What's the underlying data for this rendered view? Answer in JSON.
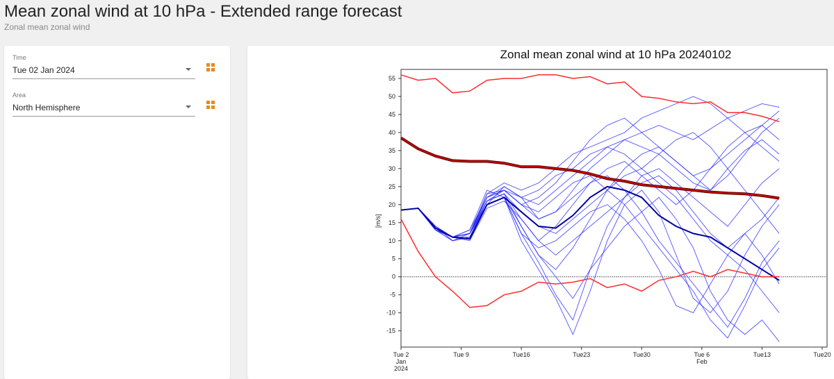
{
  "header": {
    "title": "Mean zonal wind at 10 hPa - Extended range forecast",
    "subtitle": "Zonal mean zonal wind"
  },
  "controls": [
    {
      "label": "Time",
      "value": "Tue 02 Jan 2024",
      "icon": "grid-icon"
    },
    {
      "label": "Area",
      "value": "North Hemisphere",
      "icon": "grid-icon"
    }
  ],
  "colors": {
    "accent": "#e8891c",
    "extremes": "#ff2a2a",
    "mean": "#c00000",
    "control": "#0000a0",
    "members": "#2a2aff"
  },
  "chart_data": {
    "type": "line",
    "title": "Zonal mean zonal wind at 10 hPa 20240102",
    "ylabel": "[m/s]",
    "ylim": [
      -19.5,
      57.5
    ],
    "xlim": [
      "2024-01-02",
      "2024-02-20"
    ],
    "yticks": [
      -15,
      -10,
      -5,
      0,
      5,
      10,
      15,
      20,
      25,
      30,
      35,
      40,
      45,
      50,
      55
    ],
    "xticks": [
      {
        "date": "2024-01-02",
        "label": "Tue 2",
        "sub": "Jan",
        "sub2": "2024"
      },
      {
        "date": "2024-01-09",
        "label": "Tue 9"
      },
      {
        "date": "2024-01-16",
        "label": "Tue16"
      },
      {
        "date": "2024-01-23",
        "label": "Tue23"
      },
      {
        "date": "2024-01-30",
        "label": "Tue30"
      },
      {
        "date": "2024-02-06",
        "label": "Tue 6",
        "sub": "Feb"
      },
      {
        "date": "2024-02-13",
        "label": "Tue13"
      },
      {
        "date": "2024-02-20",
        "label": "Tue20"
      }
    ],
    "x": [
      "2024-01-02",
      "2024-01-04",
      "2024-01-06",
      "2024-01-08",
      "2024-01-10",
      "2024-01-12",
      "2024-01-14",
      "2024-01-16",
      "2024-01-18",
      "2024-01-20",
      "2024-01-22",
      "2024-01-24",
      "2024-01-26",
      "2024-01-28",
      "2024-01-30",
      "2024-02-01",
      "2024-02-03",
      "2024-02-05",
      "2024-02-07",
      "2024-02-09",
      "2024-02-11",
      "2024-02-13",
      "2024-02-15"
    ],
    "maximum": [
      56,
      54.5,
      55,
      51,
      51.5,
      54.5,
      55,
      55,
      56,
      56,
      55,
      55.5,
      53.5,
      54,
      50,
      49.5,
      48.5,
      48,
      48.5,
      45.5,
      45.5,
      44.5,
      43
    ],
    "minimum": [
      16,
      7,
      0,
      -4,
      -8.5,
      -8,
      -5,
      -4,
      -1.5,
      -2,
      -1.5,
      -0.5,
      -3,
      -2,
      -4,
      -1,
      0,
      1.5,
      0,
      2,
      1,
      0,
      0
    ],
    "mean": [
      38.5,
      35.5,
      33.5,
      32.2,
      32,
      32,
      31.5,
      30.5,
      30.5,
      30,
      29.5,
      28.5,
      27.2,
      26.5,
      25.5,
      25,
      24.5,
      24,
      23.5,
      23.2,
      23,
      22.5,
      21.8
    ],
    "control": [
      18.5,
      19,
      13.5,
      11,
      10.5,
      20,
      22,
      18,
      14,
      13.5,
      17,
      22,
      25,
      24,
      22,
      17,
      14,
      12,
      11,
      8,
      5,
      2,
      -1
    ],
    "members": [
      [
        18.5,
        19,
        13,
        11,
        12,
        22,
        24,
        20,
        16,
        18,
        24,
        30,
        34,
        38,
        40,
        42,
        40,
        38,
        41,
        44,
        46,
        48,
        47
      ],
      [
        18.5,
        19,
        14,
        10,
        11,
        21,
        23,
        14,
        6,
        2,
        8,
        16,
        24,
        30,
        34,
        36,
        32,
        28,
        24,
        30,
        35,
        38,
        34
      ],
      [
        18.5,
        19,
        13,
        11,
        13,
        24,
        22,
        12,
        4,
        -5,
        -12,
        2,
        14,
        22,
        28,
        30,
        26,
        22,
        18,
        14,
        20,
        26,
        30
      ],
      [
        18.5,
        19,
        13,
        11,
        12,
        20,
        25,
        22,
        20,
        24,
        28,
        32,
        36,
        34,
        30,
        26,
        22,
        16,
        10,
        6,
        2,
        -4,
        -10
      ],
      [
        18.5,
        19,
        14,
        11,
        10,
        19,
        21,
        16,
        10,
        14,
        20,
        26,
        28,
        24,
        18,
        10,
        4,
        -2,
        -8,
        -14,
        -6,
        4,
        10
      ],
      [
        18.5,
        19,
        13,
        11,
        12,
        23,
        26,
        24,
        26,
        30,
        34,
        36,
        38,
        40,
        44,
        46,
        48,
        50,
        48,
        44,
        40,
        36,
        32
      ],
      [
        18.5,
        19,
        13,
        10,
        11,
        20,
        22,
        10,
        2,
        -6,
        -16,
        -4,
        10,
        20,
        24,
        18,
        6,
        -6,
        -10,
        -4,
        6,
        14,
        20
      ],
      [
        18.5,
        19,
        14,
        11,
        12,
        21,
        23,
        18,
        14,
        12,
        16,
        20,
        24,
        28,
        30,
        34,
        38,
        40,
        36,
        30,
        24,
        18,
        12
      ],
      [
        18.5,
        19,
        13,
        11,
        13,
        22,
        24,
        20,
        18,
        22,
        26,
        28,
        24,
        20,
        14,
        8,
        2,
        -4,
        -12,
        -17,
        -8,
        2,
        8
      ],
      [
        18.5,
        19,
        13,
        11,
        12,
        21,
        24,
        22,
        24,
        28,
        30,
        34,
        36,
        38,
        36,
        34,
        30,
        26,
        24,
        28,
        34,
        40,
        44
      ],
      [
        18.5,
        19,
        14,
        11,
        11,
        20,
        22,
        12,
        8,
        10,
        14,
        18,
        20,
        16,
        10,
        2,
        -8,
        -10,
        -2,
        6,
        12,
        6,
        -2
      ],
      [
        18.5,
        19,
        13,
        10,
        12,
        22,
        25,
        22,
        16,
        18,
        22,
        26,
        30,
        32,
        28,
        24,
        20,
        24,
        30,
        36,
        40,
        42,
        38
      ],
      [
        18.5,
        19,
        13,
        11,
        12,
        21,
        23,
        16,
        10,
        6,
        10,
        14,
        18,
        22,
        26,
        28,
        24,
        18,
        12,
        8,
        12,
        16,
        22
      ],
      [
        18.5,
        19,
        14,
        11,
        12,
        23,
        24,
        20,
        22,
        26,
        32,
        38,
        42,
        44,
        40,
        36,
        32,
        28,
        30,
        34,
        38,
        42,
        46
      ],
      [
        18.5,
        19,
        13,
        11,
        12,
        20,
        22,
        14,
        6,
        0,
        -6,
        2,
        8,
        14,
        18,
        22,
        16,
        8,
        -4,
        -12,
        -16,
        -12,
        -18
      ]
    ]
  }
}
